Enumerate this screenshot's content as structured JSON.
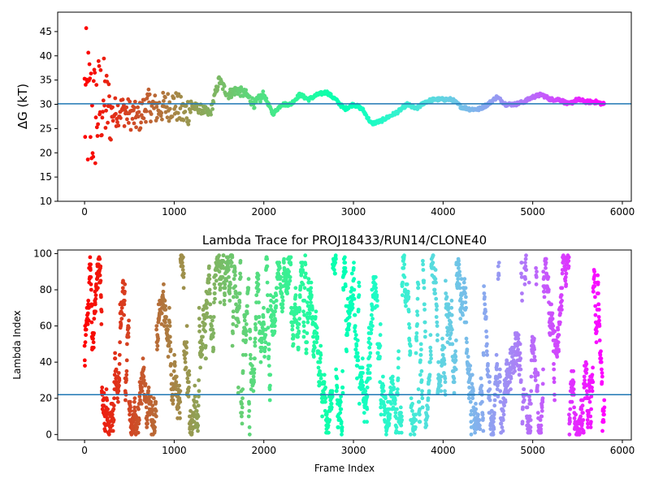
{
  "chart_data": [
    {
      "type": "scatter",
      "title": "",
      "xlabel": "",
      "ylabel": "ΔG (kT)",
      "ylabel_italic_part": "G",
      "xlim": [
        -300,
        6100
      ],
      "ylim": [
        10,
        49
      ],
      "x_ticks": [
        0,
        1000,
        2000,
        3000,
        4000,
        5000,
        6000
      ],
      "y_ticks": [
        10,
        15,
        20,
        25,
        30,
        35,
        40,
        45
      ],
      "colormap": "rainbow (red → violet with frame index)",
      "hline": 30.1,
      "hline_color": "#1f77b4",
      "trace_profile": [
        [
          0,
          30
        ],
        [
          100,
          27
        ],
        [
          200,
          31
        ],
        [
          300,
          28
        ],
        [
          400,
          29
        ],
        [
          500,
          28
        ],
        [
          600,
          27
        ],
        [
          700,
          30
        ],
        [
          800,
          29
        ],
        [
          900,
          29.5
        ],
        [
          1000,
          30
        ],
        [
          1100,
          28
        ],
        [
          1200,
          29.5
        ],
        [
          1300,
          29
        ],
        [
          1400,
          28
        ],
        [
          1500,
          35
        ],
        [
          1600,
          32
        ],
        [
          1700,
          33
        ],
        [
          1800,
          32
        ],
        [
          1900,
          30
        ],
        [
          2000,
          32
        ],
        [
          2100,
          28
        ],
        [
          2200,
          30
        ],
        [
          2300,
          30
        ],
        [
          2400,
          32
        ],
        [
          2500,
          31
        ],
        [
          2600,
          32
        ],
        [
          2700,
          32.5
        ],
        [
          2800,
          31
        ],
        [
          2900,
          29
        ],
        [
          3000,
          30
        ],
        [
          3100,
          29
        ],
        [
          3200,
          26
        ],
        [
          3300,
          26.5
        ],
        [
          3400,
          27.5
        ],
        [
          3500,
          28.5
        ],
        [
          3600,
          30
        ],
        [
          3700,
          29
        ],
        [
          3800,
          30.5
        ],
        [
          3900,
          31
        ],
        [
          4000,
          31
        ],
        [
          4100,
          31
        ],
        [
          4200,
          29.5
        ],
        [
          4300,
          29
        ],
        [
          4400,
          29
        ],
        [
          4500,
          30
        ],
        [
          4600,
          31.5
        ],
        [
          4700,
          30
        ],
        [
          4800,
          30
        ],
        [
          4900,
          30.5
        ],
        [
          5000,
          31.5
        ],
        [
          5100,
          32
        ],
        [
          5200,
          31
        ],
        [
          5300,
          31
        ],
        [
          5400,
          30
        ],
        [
          5500,
          31
        ],
        [
          5600,
          30.5
        ],
        [
          5700,
          30.5
        ],
        [
          5800,
          30
        ]
      ]
    },
    {
      "type": "scatter",
      "title": "Lambda Trace for PROJ18433/RUN14/CLONE40",
      "xlabel": "Frame Index",
      "ylabel": "Lambda Index",
      "xlim": [
        -300,
        6100
      ],
      "ylim": [
        -3,
        102
      ],
      "x_ticks": [
        0,
        1000,
        2000,
        3000,
        4000,
        5000,
        6000
      ],
      "y_ticks": [
        0,
        20,
        40,
        60,
        80,
        100
      ],
      "colormap": "rainbow (red → violet with frame index)",
      "value_range": [
        0,
        99
      ],
      "frame_range": [
        0,
        5800
      ],
      "hline": 22,
      "hline_color": "#1f77b4"
    }
  ]
}
